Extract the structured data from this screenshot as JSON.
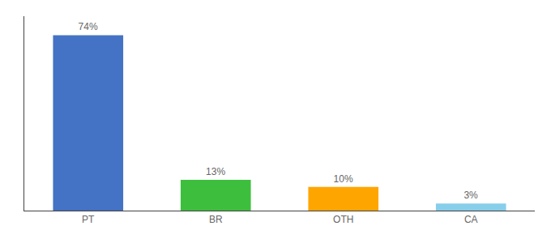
{
  "chart_data": {
    "type": "bar",
    "categories": [
      "PT",
      "BR",
      "OTH",
      "CA"
    ],
    "values": [
      74,
      13,
      10,
      3
    ],
    "value_labels": [
      "74%",
      "13%",
      "10%",
      "3%"
    ],
    "colors": [
      "#4472C4",
      "#3DBF3D",
      "#FFA500",
      "#87CEEB"
    ],
    "ylim": [
      0,
      82
    ],
    "grid": false,
    "data_labels": true,
    "tick_labels": "x"
  }
}
